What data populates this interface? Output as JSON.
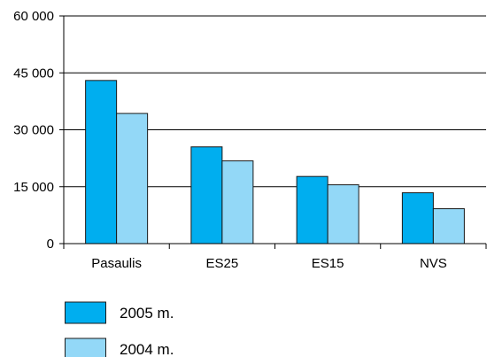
{
  "chart_data": {
    "type": "bar",
    "categories": [
      "Pasaulis",
      "ES25",
      "ES15",
      "NVS"
    ],
    "series": [
      {
        "name": "2005 m.",
        "color": "#00aeef",
        "values": [
          43000,
          25500,
          17700,
          13400
        ]
      },
      {
        "name": "2004 m.",
        "color": "#93d8f7",
        "values": [
          34300,
          21800,
          15500,
          9200
        ]
      }
    ],
    "ylim": [
      0,
      60000
    ],
    "yticks": [
      0,
      15000,
      30000,
      45000,
      60000
    ],
    "ytick_labels": [
      "0",
      "15 000",
      "30 000",
      "45 000",
      "60 000"
    ],
    "grid": true,
    "legend_position": "bottom-left"
  }
}
